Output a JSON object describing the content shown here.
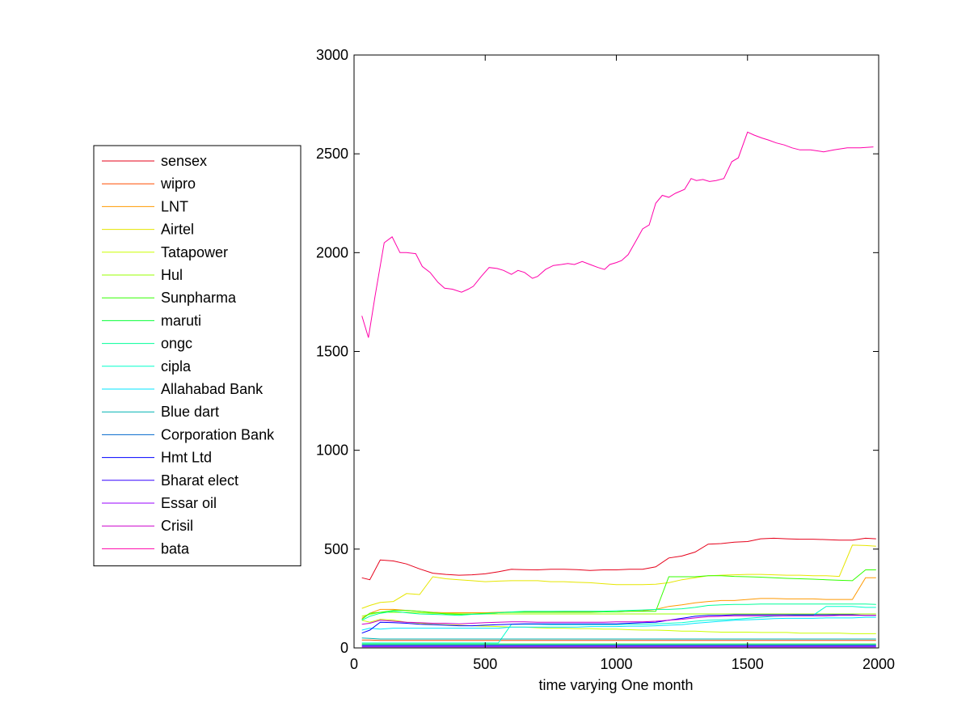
{
  "chart_data": {
    "type": "line",
    "title": "",
    "xlabel": "time varying One month",
    "ylabel": "",
    "xlim": [
      0,
      2000
    ],
    "ylim": [
      0,
      3000
    ],
    "xticks": [
      "0",
      "500",
      "1000",
      "1500",
      "2000"
    ],
    "yticks": [
      "0",
      "500",
      "1000",
      "1500",
      "2000",
      "2500",
      "3000"
    ],
    "grid": false,
    "legend_position": "outside-left",
    "x": [
      30,
      60,
      100,
      150,
      200,
      250,
      300,
      350,
      400,
      450,
      500,
      550,
      600,
      650,
      700,
      750,
      800,
      850,
      900,
      950,
      1000,
      1050,
      1100,
      1150,
      1200,
      1250,
      1300,
      1350,
      1400,
      1450,
      1500,
      1550,
      1600,
      1650,
      1700,
      1750,
      1800,
      1850,
      1900,
      1950,
      1990
    ],
    "series": [
      {
        "name": "sensex",
        "color": "#e6001a",
        "values": [
          355,
          345,
          445,
          440,
          425,
          400,
          378,
          372,
          368,
          370,
          375,
          385,
          398,
          396,
          395,
          398,
          398,
          396,
          392,
          395,
          395,
          398,
          398,
          410,
          455,
          465,
          485,
          525,
          528,
          535,
          538,
          552,
          555,
          552,
          550,
          550,
          548,
          545,
          545,
          555,
          552
        ]
      },
      {
        "name": "wipro",
        "color": "#ff4d00",
        "values": [
          40,
          40,
          38,
          38,
          38,
          38,
          38,
          38,
          38,
          38,
          38,
          38,
          38,
          38,
          38,
          38,
          38,
          38,
          38,
          38,
          38,
          38,
          38,
          38,
          38,
          38,
          38,
          38,
          38,
          38,
          38,
          38,
          38,
          38,
          38,
          38,
          38,
          38,
          38,
          38,
          38
        ]
      },
      {
        "name": "LNT",
        "color": "#ff9900",
        "values": [
          150,
          175,
          195,
          195,
          190,
          185,
          180,
          178,
          178,
          178,
          178,
          180,
          182,
          182,
          182,
          182,
          182,
          182,
          182,
          182,
          182,
          185,
          188,
          195,
          210,
          218,
          228,
          235,
          240,
          240,
          245,
          250,
          250,
          248,
          248,
          248,
          245,
          245,
          245,
          355,
          355
        ]
      },
      {
        "name": "Airtel",
        "color": "#e6e600",
        "values": [
          200,
          215,
          230,
          235,
          275,
          270,
          360,
          350,
          345,
          340,
          335,
          338,
          340,
          340,
          340,
          335,
          335,
          332,
          330,
          325,
          320,
          320,
          320,
          322,
          330,
          345,
          355,
          365,
          368,
          370,
          372,
          372,
          370,
          368,
          368,
          365,
          365,
          362,
          520,
          518,
          515
        ]
      },
      {
        "name": "Tatapower",
        "color": "#ccff00",
        "values": [
          140,
          130,
          145,
          140,
          130,
          125,
          120,
          118,
          115,
          112,
          110,
          108,
          105,
          105,
          102,
          100,
          100,
          98,
          98,
          95,
          95,
          92,
          90,
          90,
          88,
          85,
          85,
          82,
          80,
          80,
          80,
          78,
          78,
          78,
          75,
          75,
          75,
          75,
          72,
          72,
          72
        ]
      },
      {
        "name": "Hul",
        "color": "#99ff00",
        "values": [
          160,
          170,
          180,
          180,
          180,
          178,
          175,
          175,
          173,
          172,
          172,
          172,
          172,
          172,
          172,
          172,
          172,
          172,
          172,
          172,
          172,
          172,
          172,
          172,
          172,
          172,
          172,
          172,
          172,
          172,
          172,
          172,
          172,
          172,
          172,
          172,
          172,
          172,
          172,
          172,
          172
        ]
      },
      {
        "name": "Sunpharma",
        "color": "#33ff00",
        "values": [
          145,
          175,
          180,
          190,
          190,
          185,
          178,
          172,
          170,
          172,
          175,
          178,
          180,
          180,
          180,
          180,
          180,
          180,
          180,
          182,
          182,
          185,
          185,
          185,
          360,
          360,
          360,
          365,
          365,
          362,
          360,
          358,
          355,
          352,
          350,
          348,
          345,
          342,
          340,
          395,
          395
        ]
      },
      {
        "name": "maruti",
        "color": "#00ff33",
        "values": [
          20,
          20,
          20,
          20,
          20,
          20,
          20,
          20,
          20,
          20,
          20,
          20,
          20,
          20,
          20,
          20,
          20,
          20,
          20,
          20,
          20,
          20,
          20,
          20,
          20,
          20,
          20,
          20,
          20,
          20,
          20,
          20,
          20,
          20,
          20,
          20,
          20,
          20,
          20,
          20,
          20
        ]
      },
      {
        "name": "ongc",
        "color": "#00ff99",
        "values": [
          140,
          160,
          175,
          185,
          178,
          172,
          170,
          168,
          165,
          170,
          172,
          178,
          182,
          185,
          185,
          185,
          186,
          186,
          186,
          186,
          188,
          190,
          192,
          195,
          195,
          198,
          205,
          215,
          218,
          220,
          220,
          222,
          222,
          222,
          222,
          222,
          222,
          222,
          222,
          222,
          220
        ]
      },
      {
        "name": "cipla",
        "color": "#00ffcc",
        "values": [
          25,
          25,
          25,
          25,
          25,
          25,
          25,
          25,
          25,
          25,
          25,
          25,
          120,
          120,
          120,
          118,
          118,
          118,
          118,
          118,
          118,
          120,
          120,
          122,
          125,
          128,
          135,
          140,
          142,
          145,
          150,
          155,
          160,
          162,
          165,
          165,
          210,
          210,
          210,
          205,
          205
        ]
      },
      {
        "name": "Allahabad Bank",
        "color": "#00e6ff",
        "values": [
          90,
          100,
          95,
          100,
          100,
          100,
          100,
          100,
          100,
          100,
          100,
          100,
          105,
          105,
          105,
          105,
          105,
          105,
          108,
          108,
          108,
          110,
          110,
          112,
          115,
          118,
          125,
          130,
          135,
          140,
          142,
          145,
          148,
          150,
          150,
          150,
          152,
          152,
          152,
          155,
          155
        ]
      },
      {
        "name": "Blue dart",
        "color": "#00b3b3",
        "values": [
          50,
          48,
          45,
          45,
          45,
          45,
          45,
          45,
          45,
          45,
          45,
          45,
          45,
          45,
          45,
          45,
          45,
          45,
          45,
          45,
          45,
          45,
          45,
          45,
          45,
          45,
          45,
          45,
          45,
          45,
          45,
          45,
          45,
          45,
          45,
          45,
          45,
          45,
          45,
          45,
          45
        ]
      },
      {
        "name": "Corporation Bank",
        "color": "#0066cc",
        "values": [
          15,
          15,
          15,
          15,
          15,
          15,
          15,
          15,
          15,
          15,
          15,
          15,
          15,
          15,
          15,
          15,
          15,
          15,
          15,
          15,
          15,
          15,
          15,
          15,
          15,
          15,
          15,
          15,
          15,
          15,
          15,
          15,
          15,
          15,
          15,
          15,
          15,
          15,
          15,
          15,
          15
        ]
      },
      {
        "name": "Hmt Ltd",
        "color": "#0000ff",
        "values": [
          75,
          90,
          130,
          128,
          125,
          120,
          118,
          115,
          112,
          112,
          115,
          118,
          120,
          122,
          122,
          122,
          122,
          122,
          122,
          122,
          122,
          125,
          128,
          130,
          140,
          150,
          160,
          165,
          165,
          168,
          168,
          168,
          168,
          168,
          168,
          168,
          168,
          168,
          168,
          165,
          165
        ]
      },
      {
        "name": "Bharat elect",
        "color": "#3300ff",
        "values": [
          10,
          10,
          10,
          10,
          10,
          10,
          10,
          10,
          10,
          10,
          10,
          10,
          10,
          10,
          10,
          10,
          10,
          10,
          10,
          10,
          10,
          10,
          10,
          10,
          10,
          10,
          10,
          10,
          10,
          10,
          10,
          10,
          10,
          10,
          10,
          10,
          10,
          10,
          10,
          10,
          10
        ]
      },
      {
        "name": "Essar oil",
        "color": "#9900ff",
        "values": [
          5,
          5,
          5,
          5,
          5,
          5,
          5,
          5,
          5,
          5,
          5,
          5,
          5,
          5,
          5,
          5,
          5,
          5,
          5,
          5,
          5,
          5,
          5,
          5,
          5,
          5,
          5,
          5,
          5,
          5,
          5,
          5,
          5,
          5,
          5,
          5,
          5,
          5,
          5,
          5,
          5
        ]
      },
      {
        "name": "Crisil",
        "color": "#cc00cc",
        "values": [
          120,
          125,
          140,
          135,
          130,
          128,
          125,
          125,
          122,
          125,
          128,
          130,
          132,
          132,
          130,
          130,
          130,
          130,
          130,
          130,
          132,
          132,
          132,
          135,
          140,
          145,
          152,
          158,
          160,
          162,
          162,
          162,
          162,
          162,
          162,
          162,
          162,
          165,
          165,
          165,
          165
        ]
      },
      {
        "name": "bata",
        "color": "#ff00aa",
        "values": [
          1680,
          1570,
          1780,
          2050,
          2080,
          2000,
          2000,
          1995,
          1930,
          1900,
          1850,
          1820,
          1815,
          1800,
          1815,
          1830,
          1880,
          1925,
          1920,
          1910,
          1890,
          1910,
          1900,
          1870,
          1880,
          1915,
          1935,
          1940,
          1945,
          1940,
          1955,
          1940,
          1925,
          1915,
          1940,
          1950,
          1960,
          1990,
          2060,
          2120,
          2140,
          2250,
          2290,
          2280,
          2300,
          2320,
          2375,
          2365,
          2370,
          2360,
          2365,
          2375,
          2460,
          2480,
          2610,
          2595,
          2580,
          2570,
          2555,
          2545,
          2530,
          2520,
          2520,
          2510,
          2520,
          2530,
          2530,
          2535
        ],
        "x": [
          30,
          55,
          80,
          115,
          145,
          175,
          200,
          235,
          260,
          290,
          320,
          345,
          375,
          410,
          435,
          455,
          485,
          515,
          545,
          570,
          600,
          625,
          650,
          680,
          700,
          730,
          760,
          790,
          815,
          840,
          870,
          900,
          930,
          955,
          975,
          1000,
          1020,
          1045,
          1075,
          1100,
          1125,
          1150,
          1175,
          1200,
          1225,
          1260,
          1285,
          1305,
          1330,
          1355,
          1380,
          1410,
          1440,
          1465,
          1500,
          1525,
          1555,
          1580,
          1610,
          1640,
          1670,
          1700,
          1740,
          1790,
          1830,
          1880,
          1930,
          1980
        ]
      }
    ]
  }
}
